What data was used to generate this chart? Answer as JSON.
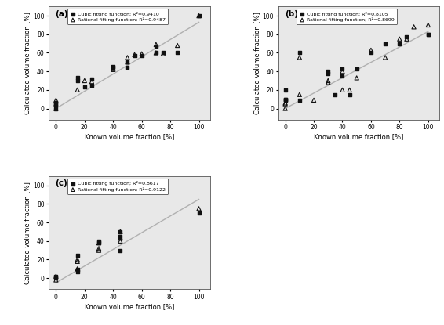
{
  "panels": [
    {
      "label": "(a)",
      "cubic_R2": "0.9410",
      "rational_R2": "0.9487",
      "cubic_x": [
        0,
        0,
        0,
        15,
        15,
        20,
        25,
        25,
        40,
        40,
        50,
        50,
        55,
        60,
        70,
        70,
        75,
        85,
        100
      ],
      "cubic_y": [
        5,
        0,
        6,
        30,
        33,
        23,
        25,
        32,
        44,
        45,
        44,
        50,
        57,
        57,
        67,
        60,
        60,
        60,
        100
      ],
      "rational_x": [
        0,
        0,
        0,
        15,
        20,
        25,
        40,
        40,
        50,
        50,
        55,
        60,
        70,
        70,
        75,
        85,
        100
      ],
      "rational_y": [
        0,
        5,
        9,
        20,
        30,
        29,
        43,
        42,
        50,
        55,
        58,
        59,
        60,
        69,
        59,
        68,
        100
      ],
      "line_x": [
        0,
        100
      ],
      "line_y": [
        0,
        93
      ]
    },
    {
      "label": "(b)",
      "cubic_R2": "0.8105",
      "rational_R2": "0.8699",
      "cubic_x": [
        0,
        0,
        0,
        0,
        10,
        10,
        30,
        30,
        35,
        40,
        40,
        45,
        50,
        60,
        70,
        80,
        85,
        100,
        100
      ],
      "cubic_y": [
        10,
        20,
        9,
        10,
        60,
        9,
        40,
        38,
        15,
        43,
        35,
        15,
        43,
        60,
        70,
        70,
        77,
        80,
        80
      ],
      "rational_x": [
        0,
        0,
        0,
        10,
        10,
        20,
        30,
        30,
        40,
        40,
        45,
        50,
        60,
        70,
        80,
        85,
        90,
        100
      ],
      "rational_y": [
        0,
        6,
        5,
        15,
        55,
        9,
        28,
        30,
        20,
        40,
        20,
        33,
        63,
        55,
        75,
        75,
        88,
        90
      ],
      "line_x": [
        0,
        100
      ],
      "line_y": [
        0,
        83
      ]
    },
    {
      "label": "(c)",
      "cubic_R2": "0.8617",
      "rational_R2": "0.9122",
      "cubic_x": [
        0,
        0,
        15,
        15,
        15,
        30,
        30,
        45,
        45,
        45,
        100
      ],
      "cubic_y": [
        2,
        1,
        7,
        9,
        25,
        38,
        40,
        30,
        45,
        50,
        70
      ],
      "rational_x": [
        0,
        0,
        15,
        15,
        15,
        30,
        30,
        30,
        45,
        45,
        45,
        45,
        100
      ],
      "rational_y": [
        -2,
        2,
        10,
        18,
        20,
        30,
        32,
        38,
        40,
        43,
        44,
        50,
        75
      ],
      "line_x": [
        0,
        100
      ],
      "line_y": [
        -5,
        85
      ]
    }
  ],
  "xlabel": "Known volume fraction [%]",
  "ylabel": "Calculated volume fraction [%]",
  "xlim": [
    -5,
    108
  ],
  "ylim": [
    -12,
    110
  ],
  "line_color": "#b0b0b0",
  "cubic_color": "#111111",
  "bg_color": "#e8e8e8",
  "legend_cubic": "Cubic fitting function; R²=",
  "legend_rational": "Rational fitting function; R²="
}
